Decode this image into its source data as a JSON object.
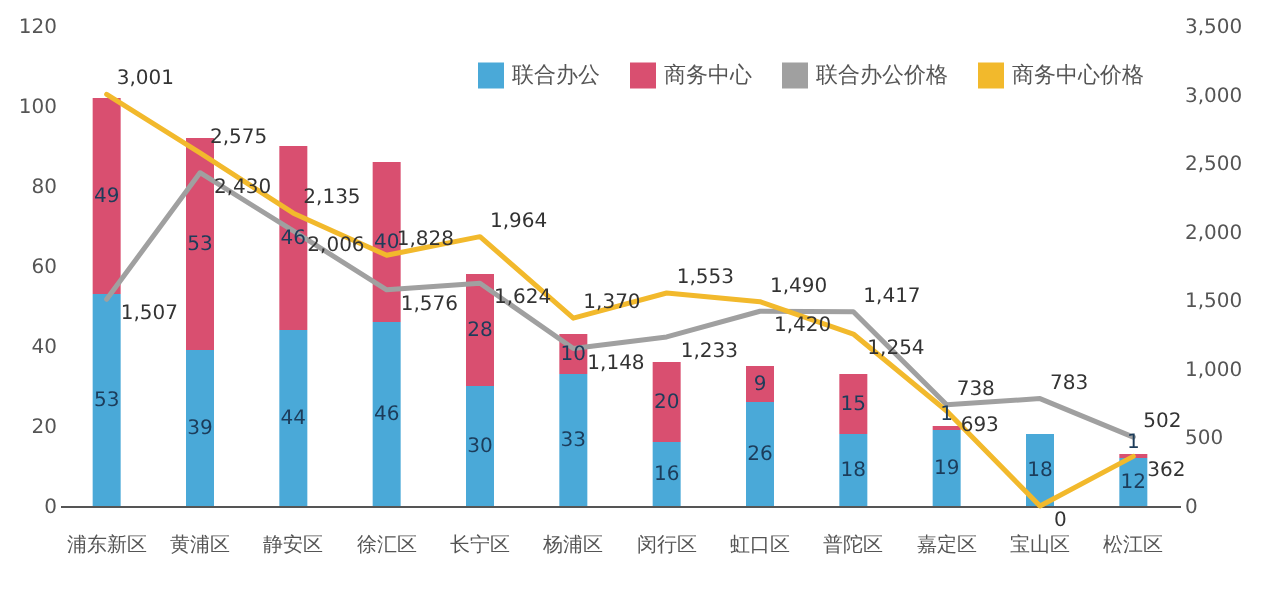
{
  "chart_data": {
    "type": "bar",
    "stacked": true,
    "legend": "top right",
    "grid": false,
    "categories": [
      "浦东新区",
      "黄浦区",
      "静安区",
      "徐汇区",
      "长宁区",
      "杨浦区",
      "闵行区",
      "虹口区",
      "普陀区",
      "嘉定区",
      "宝山区",
      "松江区"
    ],
    "ylim": [
      0,
      120
    ],
    "yticks": [
      0,
      20,
      40,
      60,
      80,
      100,
      120
    ],
    "y2lim": [
      0,
      3500
    ],
    "y2ticks": [
      0,
      {
        "value": 500,
        "label": "500"
      },
      {
        "value": 1000,
        "label": "1,000"
      },
      {
        "value": 1500,
        "label": "1,500"
      },
      {
        "value": 2000,
        "label": "2,000"
      },
      {
        "value": 2500,
        "label": "2,500"
      },
      {
        "value": 3000,
        "label": "3,000"
      },
      {
        "value": 3500,
        "label": "3,500"
      }
    ],
    "series": [
      {
        "name": "联合办公",
        "color": "#4aa9d8",
        "values": [
          53,
          39,
          44,
          46,
          30,
          33,
          16,
          26,
          18,
          19,
          18,
          12
        ],
        "value_labels": [
          "53",
          "39",
          "44",
          "46",
          "30",
          "33",
          "16",
          "26",
          "18",
          "19",
          "18",
          "12"
        ]
      },
      {
        "name": "商务中心",
        "color": "#d94f70",
        "values": [
          49,
          53,
          46,
          40,
          28,
          10,
          20,
          9,
          15,
          1,
          0,
          1
        ],
        "value_labels": [
          "49",
          "53",
          "46",
          "40",
          "28",
          "10",
          "20",
          "9",
          "15",
          "1",
          null,
          "1"
        ]
      },
      {
        "name": "联合办公价格",
        "type": "line",
        "axis": "y2",
        "color": "#a0a0a0",
        "values": [
          1507,
          2430,
          2006,
          1576,
          1624,
          1148,
          1233,
          1420,
          1417,
          738,
          783,
          502
        ],
        "value_labels": [
          "1,507",
          "2,430",
          "2,006",
          "1,576",
          "1,624",
          "1,148",
          "1,233",
          "1,420",
          "1,417",
          "738",
          "783",
          "502"
        ]
      },
      {
        "name": "商务中心价格",
        "type": "line",
        "axis": "y2",
        "color": "#f2b92c",
        "values": [
          3001,
          2575,
          2135,
          1828,
          1964,
          1370,
          1553,
          1490,
          1254,
          693,
          0,
          362
        ],
        "value_labels": [
          "3,001",
          "2,575",
          "2,135",
          "1,828",
          "1,964",
          "1,370",
          "1,553",
          "1,490",
          "1,254",
          "693",
          "0",
          "362"
        ]
      }
    ]
  }
}
